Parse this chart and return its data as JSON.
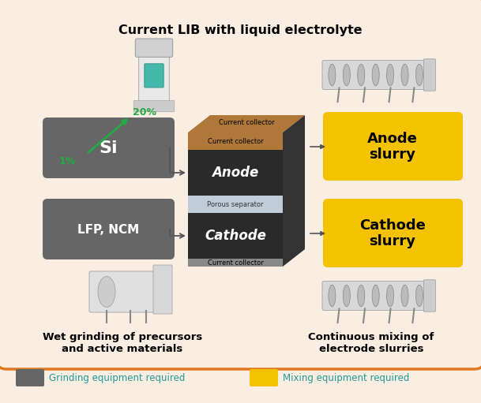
{
  "title": "Current LIB with liquid electrolyte",
  "bg_color": "#faeee3",
  "border_color": "#e07820",
  "dark_box_color": "#666666",
  "yellow_box_color": "#f5c200",
  "si_label": "Si",
  "lfp_label": "LFP, NCM",
  "anode_slurry_label": "Anode\nslurry",
  "cathode_slurry_label": "Cathode\nslurry",
  "anode_label": "Anode",
  "cathode_label": "Cathode",
  "porous_sep_label": "Porous separator",
  "current_collector_top": "Current collector",
  "current_collector_bot": "Current collector",
  "percent_20": "20%",
  "percent_1": "1%",
  "wet_grinding_label": "Wet grinding of precursors\nand active materials",
  "continuous_mixing_label": "Continuous mixing of\nelectrode slurries",
  "legend_grinding": "Grinding equipment required",
  "legend_mixing": "Mixing equipment required",
  "arrow_color": "#555555",
  "green_arrow_color": "#22aa44",
  "percent_color": "#22aa44",
  "title_fontsize": 11.5,
  "label_fontsize": 10,
  "small_fontsize": 8,
  "legend_text_color": "#22aaaa"
}
